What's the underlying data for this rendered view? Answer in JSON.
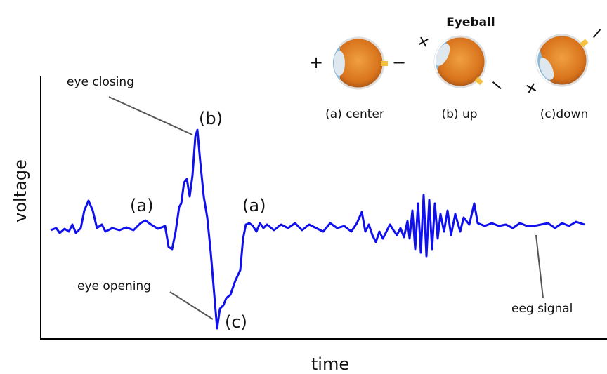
{
  "header": {
    "title": "Eyeball"
  },
  "eyes": [
    {
      "label": "(a) center",
      "plus": "+",
      "minus": "−"
    },
    {
      "label": "(b) up",
      "plus": "+",
      "minus": "−"
    },
    {
      "label": "(c)down",
      "plus": "+",
      "minus": "−"
    }
  ],
  "axes": {
    "y_label": "voltage",
    "x_label": "time"
  },
  "annotations": {
    "eye_closing": "eye closing",
    "eye_opening": "eye opening",
    "eeg_signal": "eeg signal",
    "peak": "(b)",
    "trough": "(c)",
    "rest_before": "(a)",
    "rest_after": "(a)"
  }
}
